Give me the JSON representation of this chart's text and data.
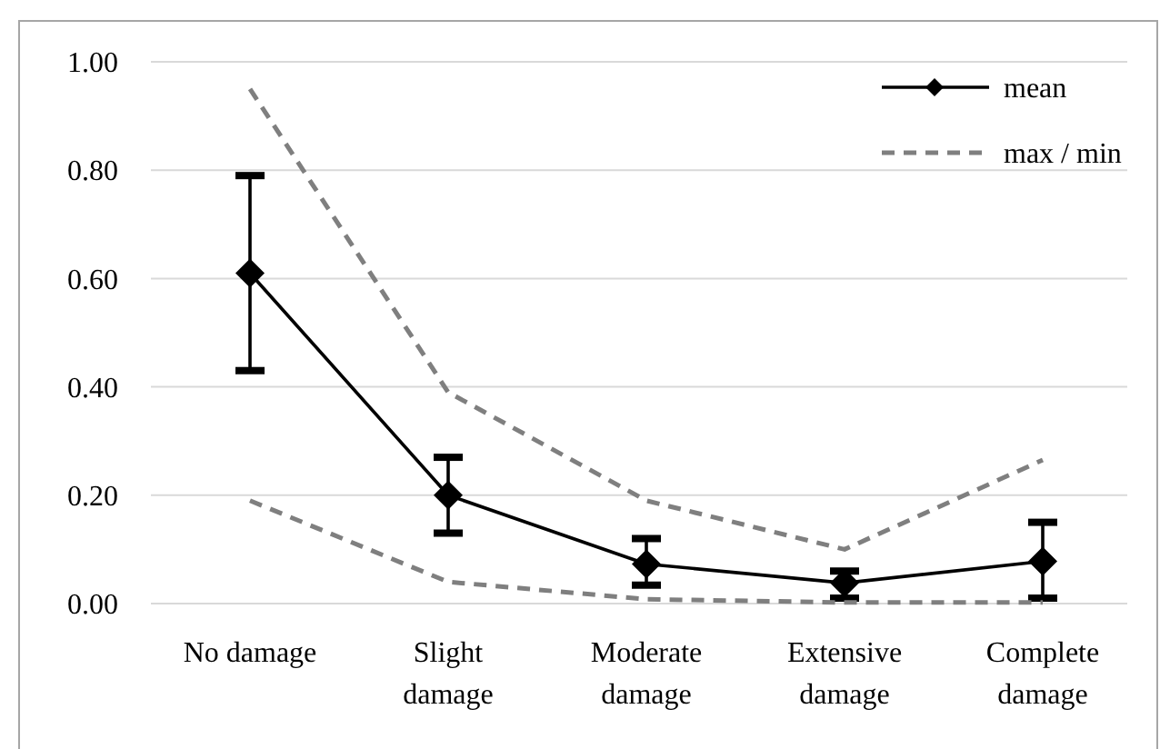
{
  "chart_data": {
    "type": "line",
    "categories": [
      "No damage",
      "Slight damage",
      "Moderate damage",
      "Extensive damage",
      "Complete damage"
    ],
    "series": [
      {
        "name": "mean",
        "color": "#000000",
        "values": [
          0.61,
          0.2,
          0.073,
          0.038,
          0.078
        ],
        "errors": [
          [
            0.43,
            0.79
          ],
          [
            0.13,
            0.27
          ],
          [
            0.034,
            0.12
          ],
          [
            0.01,
            0.06
          ],
          [
            0.01,
            0.15
          ]
        ],
        "marker": "diamond",
        "line_style": "solid"
      },
      {
        "name": "max / min",
        "color": "#7f7f7f",
        "values": [
          0.95,
          0.39,
          0.19,
          0.1,
          0.265
        ],
        "marker": "none",
        "line_style": "dashed"
      },
      {
        "color": "#7f7f7f",
        "values": [
          0.19,
          0.04,
          0.008,
          0.002,
          0.002
        ],
        "marker": "none",
        "line_style": "dashed"
      }
    ],
    "ylim": [
      0,
      1
    ],
    "yticks": [
      {
        "value": 0,
        "label": "0.00"
      },
      {
        "value": 0.2,
        "label": "0.20"
      },
      {
        "value": 0.4,
        "label": "0.40"
      },
      {
        "value": 0.6,
        "label": "0.60"
      },
      {
        "value": 0.8,
        "label": "0.80"
      },
      {
        "value": 1,
        "label": "1.00"
      }
    ],
    "grid": "y",
    "legend": "top right"
  }
}
